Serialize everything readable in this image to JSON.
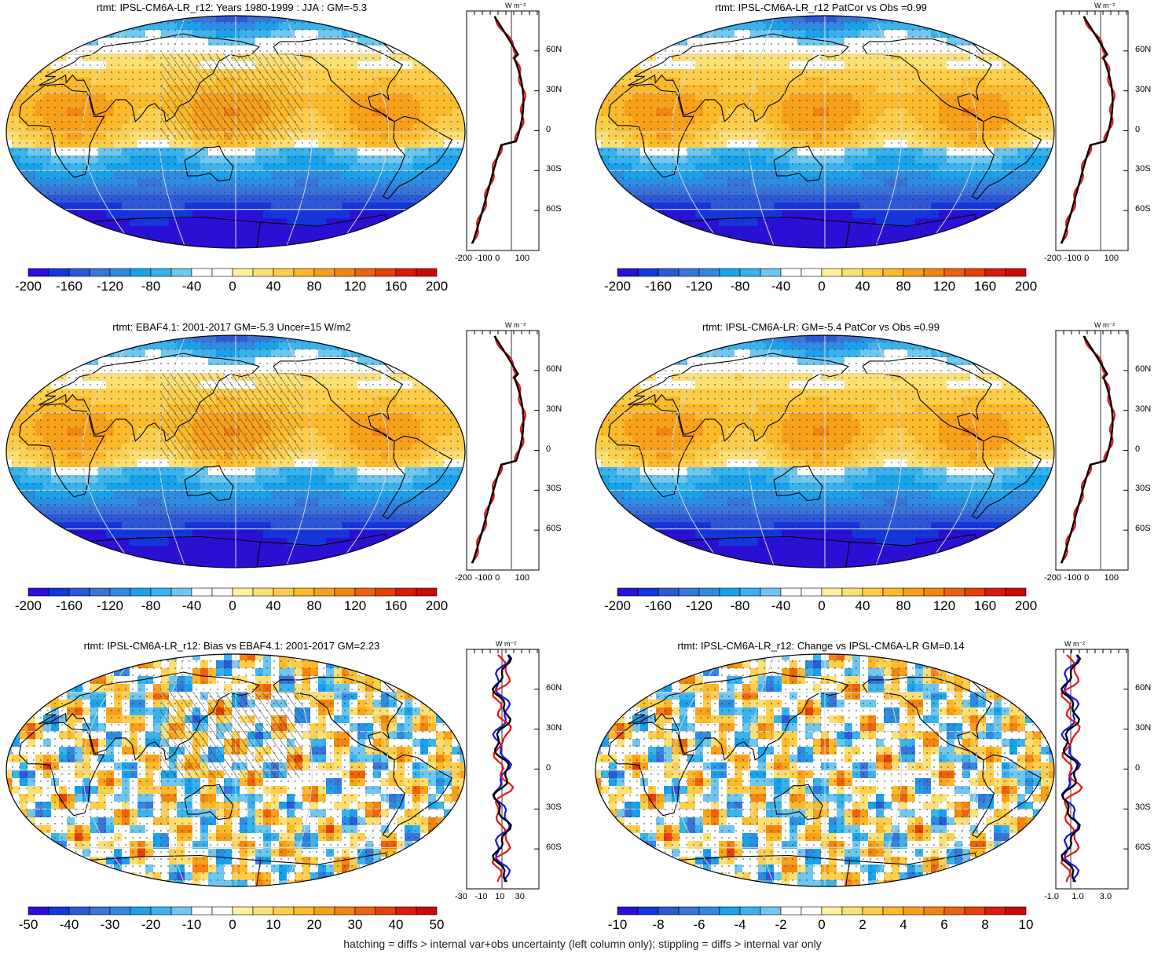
{
  "footer": "hatching = diffs > internal var+obs uncertainty (left column only); stippling = diffs > internal var only",
  "zonal_unit": "W m⁻²",
  "lat_labels": [
    "60N",
    "30N",
    "0",
    "30S",
    "60S"
  ],
  "colors": {
    "full": [
      "#2a0fd6",
      "#1436dc",
      "#2e58d6",
      "#3a74d6",
      "#2f8be0",
      "#19a2ea",
      "#3ab2ec",
      "#6fc6ee",
      "#ffffff",
      "#ffffff",
      "#fdf1a0",
      "#fde074",
      "#fcce4c",
      "#fbba2a",
      "#f8a01a",
      "#f28412",
      "#ec620e",
      "#e5400c",
      "#dc1a0c",
      "#c80a0a"
    ]
  },
  "panels": [
    {
      "id": "p1",
      "title": "rtmt: IPSL-CM6A-LR_r12: Years 1980-1999 : JJA : GM=-5.3",
      "cbar_ticks": [
        "-200",
        "-160",
        "-120",
        "-80",
        "-40",
        "0",
        "40",
        "80",
        "120",
        "160",
        "200"
      ],
      "zonal_x_ticks": [
        "-200",
        "-100",
        "0",
        "100"
      ],
      "hatching": true,
      "stippling": true,
      "type": "full"
    },
    {
      "id": "p2",
      "title": "rtmt: IPSL-CM6A-LR_r12 PatCor vs Obs =0.99",
      "cbar_ticks": [
        "-200",
        "-160",
        "-120",
        "-80",
        "-40",
        "0",
        "40",
        "80",
        "120",
        "160",
        "200"
      ],
      "zonal_x_ticks": [
        "-200",
        "-100",
        "0",
        "100"
      ],
      "hatching": false,
      "stippling": true,
      "type": "full"
    },
    {
      "id": "p3",
      "title": "rtmt: EBAF4.1: 2001-2017 GM=-5.3 Uncer=15 W/m2",
      "cbar_ticks": [
        "-200",
        "-160",
        "-120",
        "-80",
        "-40",
        "0",
        "40",
        "80",
        "120",
        "160",
        "200"
      ],
      "zonal_x_ticks": [
        "-200",
        "-100",
        "0",
        "100"
      ],
      "hatching": true,
      "stippling": true,
      "type": "full"
    },
    {
      "id": "p4",
      "title": "rtmt: IPSL-CM6A-LR: GM=-5.4 PatCor vs Obs =0.99",
      "cbar_ticks": [
        "-200",
        "-160",
        "-120",
        "-80",
        "-40",
        "0",
        "40",
        "80",
        "120",
        "160",
        "200"
      ],
      "zonal_x_ticks": [
        "-200",
        "-100",
        "0",
        "100"
      ],
      "hatching": false,
      "stippling": true,
      "type": "full"
    },
    {
      "id": "p5",
      "title": "rtmt: IPSL-CM6A-LR_r12: Bias vs EBAF4.1: 2001-2017 GM=2.23",
      "cbar_ticks": [
        "-50",
        "-40",
        "-30",
        "-20",
        "-10",
        "0",
        "10",
        "20",
        "30",
        "40",
        "50"
      ],
      "zonal_x_ticks": [
        "-30",
        "-10",
        "10",
        "30"
      ],
      "hatching": true,
      "stippling": true,
      "type": "diff"
    },
    {
      "id": "p6",
      "title": "rtmt: IPSL-CM6A-LR_r12: Change vs IPSL-CM6A-LR GM=0.14",
      "cbar_ticks": [
        "-10",
        "-8",
        "-6",
        "-4",
        "-2",
        "0",
        "2",
        "4",
        "6",
        "8",
        "10"
      ],
      "zonal_x_ticks": [
        "-1.0",
        "1.0",
        "3.0"
      ],
      "hatching": false,
      "stippling": true,
      "type": "diff"
    }
  ]
}
